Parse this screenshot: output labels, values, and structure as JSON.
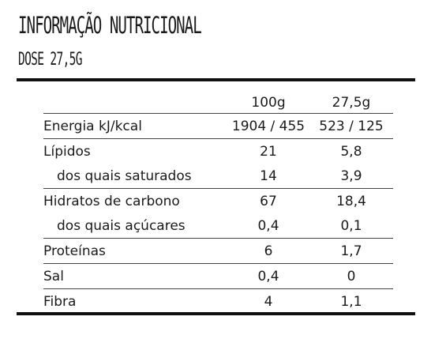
{
  "title": "INFORMAÇÃO NUTRICIONAL",
  "subtitle": "DOSE 27,5G",
  "table": {
    "columns": [
      "100g",
      "27,5g"
    ],
    "rows": [
      {
        "name": "Energia kJ/kcal",
        "per100": "1904 / 455",
        "perDose": "523 / 125"
      },
      {
        "name": "Lípidos",
        "per100": "21",
        "perDose": "5,8"
      },
      {
        "name": "dos quais saturados",
        "per100": "14",
        "perDose": "3,9"
      },
      {
        "name": "Hidratos de carbono",
        "per100": "67",
        "perDose": "18,4"
      },
      {
        "name": "dos quais açúcares",
        "per100": "0,4",
        "perDose": "0,1"
      },
      {
        "name": "Proteínas",
        "per100": "6",
        "perDose": "1,7"
      },
      {
        "name": "Sal",
        "per100": "0,4",
        "perDose": "0"
      },
      {
        "name": "Fibra",
        "per100": "4",
        "perDose": "1,1"
      }
    ]
  }
}
